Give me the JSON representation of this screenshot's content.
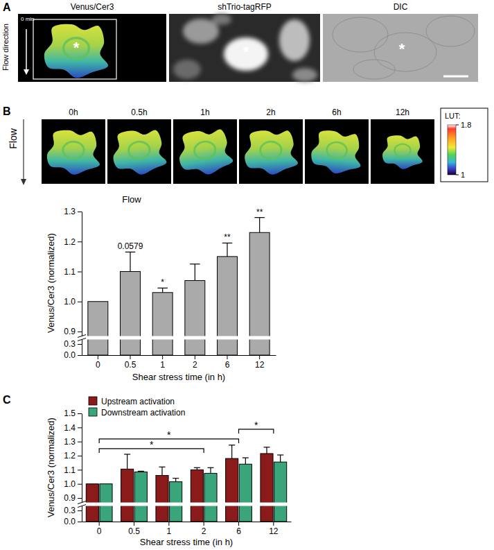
{
  "figure": {
    "panel_labels": [
      "A",
      "B",
      "C"
    ],
    "panel_a": {
      "images": [
        {
          "label": "Venus/Cer3",
          "time": "0 min"
        },
        {
          "label": "shTrio-tagRFP"
        },
        {
          "label": "DIC"
        }
      ],
      "flow_label": "Flow direction",
      "cell_marker": "*"
    },
    "panel_b": {
      "flow_label": "Flow",
      "time_labels": [
        "0h",
        "0.5h",
        "1h",
        "2h",
        "6h",
        "12h"
      ],
      "lut": {
        "label": "LUT:",
        "range": [
          1,
          1.8
        ],
        "ticks": [
          1.8,
          1
        ]
      }
    }
  },
  "chart_data": [
    {
      "type": "bar",
      "title": "Flow",
      "x_label": "Shear stress time (in h)",
      "y_label": "Venus/Cer3 (normalized)",
      "categories": [
        "0",
        "0.5",
        "1",
        "2",
        "6",
        "12"
      ],
      "values": [
        1,
        1.1,
        1.03,
        1.07,
        1.15,
        1.23
      ],
      "errors": [
        null,
        0.065,
        0.015,
        0.055,
        0.045,
        0.05
      ],
      "significance": [
        null,
        "0.0579",
        "*",
        null,
        "**",
        "**"
      ],
      "color": "#aaaaaa",
      "ylim": [
        0,
        1.3
      ],
      "ybreak": [
        0.3,
        0.9
      ],
      "yticks": [
        {
          "value": 0,
          "label": "0.0"
        },
        0.3,
        0.9,
        {
          "value": 1,
          "label": "1.0"
        },
        1.1,
        1.2,
        1.3
      ]
    },
    {
      "type": "bar",
      "x_label": "Shear stress time (in h)",
      "y_label": "Venus/Cer3 (normalized)",
      "categories": [
        "0",
        "0.5",
        "1",
        "2",
        "6",
        "12"
      ],
      "series": [
        {
          "name": "Upstream activation",
          "color": "#8b1a1a",
          "values": [
            1,
            1.105,
            1.06,
            1.1,
            1.18,
            1.215
          ],
          "errors": [
            null,
            0.105,
            0.06,
            0.015,
            0.095,
            0.045
          ]
        },
        {
          "name": "Downstream activation",
          "color": "#3aa57a",
          "values": [
            1,
            1.085,
            1.015,
            1.075,
            1.14,
            1.155
          ],
          "errors": [
            null,
            0.005,
            0.025,
            0.04,
            0.045,
            0.05
          ]
        }
      ],
      "comparisons": [
        {
          "from": 0,
          "to": 3,
          "label": "*"
        },
        {
          "from": 0,
          "to": 4,
          "label": "*"
        },
        {
          "from": 4,
          "to": 5,
          "label": "*"
        }
      ],
      "legend": "top-left",
      "ylim": [
        0,
        1.5
      ],
      "ybreak": [
        0.3,
        0.9
      ],
      "yticks": [
        {
          "value": 0,
          "label": "0.0"
        },
        0.3,
        0.9,
        {
          "value": 1,
          "label": "1.0"
        },
        1.1,
        1.2,
        1.3,
        1.4,
        1.5
      ]
    }
  ]
}
